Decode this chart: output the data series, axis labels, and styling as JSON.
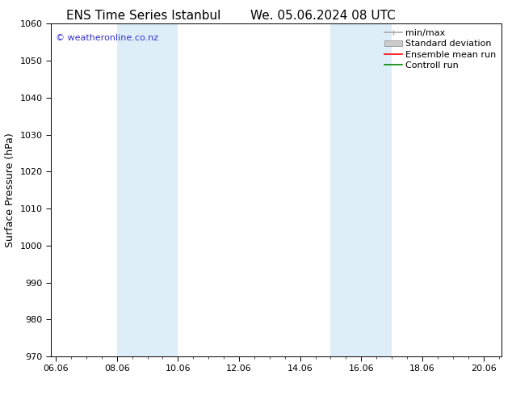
{
  "title_left": "ENS Time Series Istanbul",
  "title_right": "We. 05.06.2024 08 UTC",
  "ylabel": "Surface Pressure (hPa)",
  "ylim": [
    970,
    1060
  ],
  "yticks": [
    970,
    980,
    990,
    1000,
    1010,
    1020,
    1030,
    1040,
    1050,
    1060
  ],
  "xlim_start": 5.85,
  "xlim_end": 20.6,
  "xtick_labels": [
    "06.06",
    "08.06",
    "10.06",
    "12.06",
    "14.06",
    "16.06",
    "18.06",
    "20.06"
  ],
  "xtick_positions": [
    6.0,
    8.0,
    10.0,
    12.0,
    14.0,
    16.0,
    18.0,
    20.0
  ],
  "shaded_bands": [
    {
      "x_start": 8.0,
      "x_end": 10.0,
      "color": "#ddeef8"
    },
    {
      "x_start": 15.0,
      "x_end": 17.0,
      "color": "#ddeef8"
    }
  ],
  "copyright_text": "© weatheronline.co.nz",
  "copyright_color": "#3333cc",
  "legend_items": [
    {
      "label": "min/max",
      "color": "#aaaaaa",
      "style": "line_with_caps"
    },
    {
      "label": "Standard deviation",
      "color": "#cccccc",
      "style": "bar"
    },
    {
      "label": "Ensemble mean run",
      "color": "#ff0000",
      "style": "line"
    },
    {
      "label": "Controll run",
      "color": "#008800",
      "style": "line"
    }
  ],
  "background_color": "#ffffff",
  "axis_background": "#ffffff",
  "title_fontsize": 11,
  "label_fontsize": 9,
  "tick_fontsize": 8,
  "legend_fontsize": 8,
  "copyright_fontsize": 8
}
